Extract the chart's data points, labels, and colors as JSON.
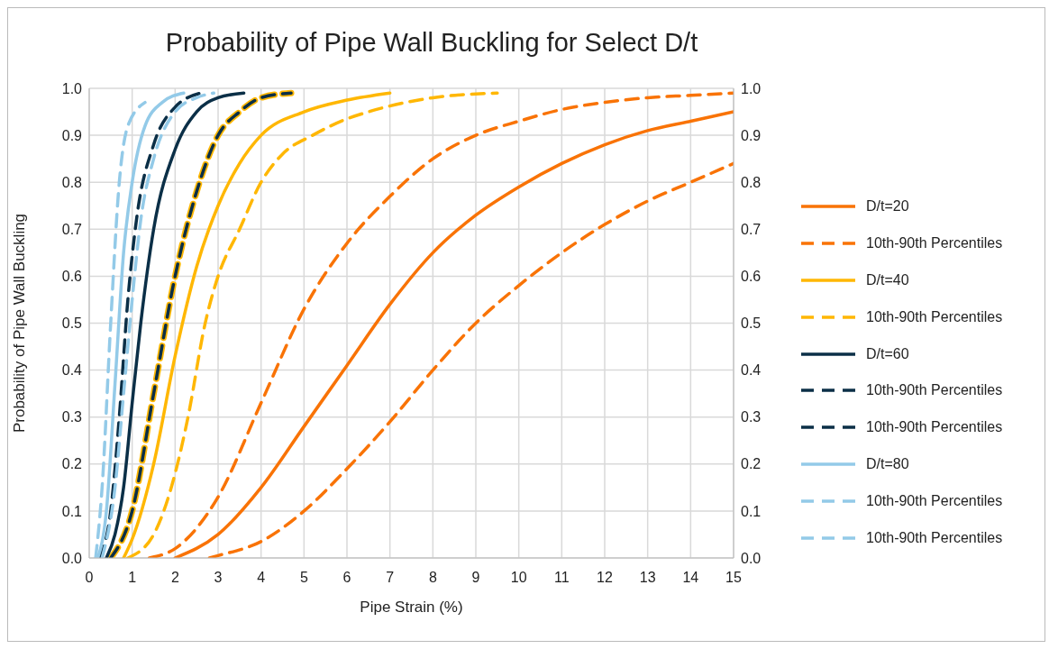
{
  "chart_data": {
    "type": "line",
    "title": "Probability of Pipe Wall Buckling for Select D/t",
    "xlabel": "Pipe Strain (%)",
    "ylabel": "Probability of Pipe Wall Buckling",
    "xlim": [
      0,
      15
    ],
    "xticks": [
      0,
      1,
      2,
      3,
      4,
      5,
      6,
      7,
      8,
      9,
      10,
      11,
      12,
      13,
      14,
      15
    ],
    "ylim": [
      0,
      1
    ],
    "yticks": [
      {
        "value": 0,
        "label": "0.0"
      },
      0.1,
      0.2,
      0.3,
      0.4,
      0.5,
      0.6,
      0.7,
      0.8,
      0.9,
      {
        "value": 1,
        "label": "1.0"
      }
    ],
    "y2lim": [
      0,
      1
    ],
    "y2ticks": [
      {
        "value": 0,
        "label": "0.0"
      },
      0.1,
      0.2,
      0.3,
      0.4,
      0.5,
      0.6,
      0.7,
      0.8,
      0.9,
      {
        "value": 1,
        "label": "1.0"
      }
    ],
    "grid": true,
    "legend": "right",
    "marker": "none",
    "series": [
      {
        "name": "D/t=20",
        "color": "#f97306",
        "line_style": "solid",
        "x": [
          2,
          3,
          4,
          5,
          6,
          7,
          8,
          9,
          10,
          11,
          12,
          13,
          14,
          15
        ],
        "values": [
          0,
          0.05,
          0.15,
          0.28,
          0.41,
          0.54,
          0.65,
          0.73,
          0.79,
          0.84,
          0.88,
          0.91,
          0.93,
          0.95
        ]
      },
      {
        "name": "10th-90th Percentiles",
        "color": "#f97306",
        "line_style": "dashed",
        "x": [
          1.4,
          2,
          3,
          4,
          5,
          6,
          7,
          8,
          9,
          10,
          11,
          12,
          13,
          14,
          15
        ],
        "values": [
          0,
          0.02,
          0.13,
          0.33,
          0.53,
          0.67,
          0.77,
          0.85,
          0.9,
          0.93,
          0.955,
          0.97,
          0.98,
          0.985,
          0.99
        ]
      },
      {
        "color": "#f97306",
        "line_style": "dashed",
        "x": [
          2.8,
          3,
          4,
          5,
          6,
          7,
          8,
          9,
          10,
          11,
          12,
          13,
          14,
          15
        ],
        "values": [
          0,
          0.005,
          0.035,
          0.1,
          0.19,
          0.29,
          0.4,
          0.5,
          0.58,
          0.65,
          0.71,
          0.76,
          0.8,
          0.84
        ]
      },
      {
        "name": "D/t=40",
        "color": "#ffb703",
        "line_style": "solid",
        "x": [
          0.8,
          1,
          1.5,
          2,
          2.5,
          3,
          3.5,
          4,
          5,
          6,
          7
        ],
        "values": [
          0,
          0.04,
          0.2,
          0.43,
          0.62,
          0.75,
          0.84,
          0.9,
          0.95,
          0.975,
          0.99
        ]
      },
      {
        "name": "10th-90th Percentiles",
        "color": "#ffb703",
        "line_style": "dashed",
        "x": [
          0.5,
          1,
          1.5,
          2,
          2.5,
          3,
          3.5,
          4,
          4.7
        ],
        "values": [
          0,
          0.1,
          0.35,
          0.6,
          0.78,
          0.9,
          0.95,
          0.98,
          0.99
        ]
      },
      {
        "color": "#ffb703",
        "line_style": "dashed",
        "x": [
          0.9,
          1.5,
          2,
          2.3,
          2.7,
          3,
          3.5,
          4,
          4.5,
          5.2,
          6,
          6.5,
          8,
          9.5
        ],
        "values": [
          0,
          0.05,
          0.18,
          0.3,
          0.5,
          0.6,
          0.7,
          0.8,
          0.86,
          0.9,
          0.935,
          0.95,
          0.98,
          0.99
        ]
      },
      {
        "name": "D/t=60",
        "color": "#0b2f47",
        "line_style": "solid",
        "x": [
          0.4,
          0.6,
          0.8,
          1,
          1.2,
          1.5,
          2,
          2.5,
          3,
          3.6
        ],
        "values": [
          0,
          0.05,
          0.15,
          0.33,
          0.5,
          0.7,
          0.87,
          0.95,
          0.98,
          0.99
        ]
      },
      {
        "name": "10th-90th Percentiles",
        "color": "#0b2f47",
        "line_style": "dashed",
        "x": [
          0.25,
          0.5,
          0.7,
          0.9,
          1.1,
          1.5,
          2,
          2.6
        ],
        "values": [
          0,
          0.1,
          0.3,
          0.55,
          0.72,
          0.88,
          0.96,
          0.99
        ]
      },
      {
        "name": "10th-90th Percentiles",
        "color": "#0b2f47",
        "line_style": "dashed",
        "x": [
          0.5,
          1,
          1.5,
          2,
          2.5,
          3,
          3.5,
          4,
          4.7
        ],
        "values": [
          0,
          0.1,
          0.35,
          0.6,
          0.78,
          0.9,
          0.95,
          0.98,
          0.99
        ]
      },
      {
        "name": "D/t=80",
        "color": "#93cae8",
        "line_style": "solid",
        "x": [
          0.2,
          0.4,
          0.6,
          0.8,
          1,
          1.3,
          1.7,
          2.2
        ],
        "values": [
          0,
          0.1,
          0.37,
          0.65,
          0.8,
          0.92,
          0.97,
          0.99
        ]
      },
      {
        "name": "10th-90th Percentiles",
        "color": "#93cae8",
        "line_style": "dashed",
        "x": [
          0.15,
          0.3,
          0.5,
          0.7,
          0.9,
          1.3
        ],
        "values": [
          0,
          0.15,
          0.5,
          0.8,
          0.92,
          0.97
        ]
      },
      {
        "name": "10th-90th Percentiles",
        "color": "#93cae8",
        "line_style": "dashed",
        "x": [
          0.3,
          0.6,
          0.8,
          1,
          1.2,
          1.5,
          2,
          2.5,
          2.9
        ],
        "values": [
          0,
          0.15,
          0.35,
          0.55,
          0.72,
          0.85,
          0.95,
          0.98,
          0.99
        ]
      }
    ]
  }
}
